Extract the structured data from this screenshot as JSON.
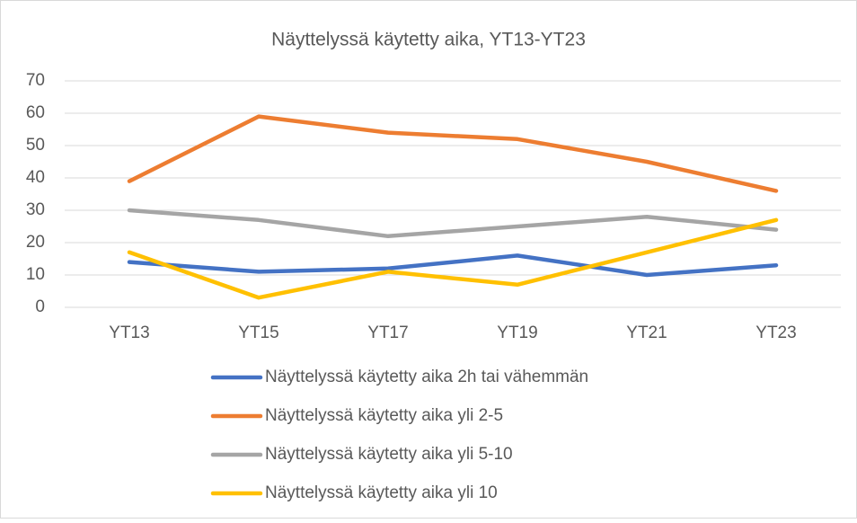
{
  "chart_data": {
    "type": "line",
    "title": "Näyttelyssä käytetty aika, YT13-YT23",
    "categories": [
      "YT13",
      "YT15",
      "YT17",
      "YT19",
      "YT21",
      "YT23"
    ],
    "series": [
      {
        "name": "Näyttelyssä käytetty aika 2h tai vähemmän",
        "color": "#4472c4",
        "values": [
          14,
          11,
          12,
          16,
          10,
          13
        ]
      },
      {
        "name": "Näyttelyssä käytetty aika yli 2-5",
        "color": "#ed7d31",
        "values": [
          39,
          59,
          54,
          52,
          45,
          36
        ]
      },
      {
        "name": "Näyttelyssä käytetty aika yli 5-10",
        "color": "#a5a5a5",
        "values": [
          30,
          27,
          22,
          25,
          28,
          24
        ]
      },
      {
        "name": "Näyttelyssä käytetty aika yli 10",
        "color": "#ffc000",
        "values": [
          17,
          3,
          11,
          7,
          17,
          27
        ]
      }
    ],
    "ylim": [
      0,
      70
    ],
    "yticks": [
      0,
      10,
      20,
      30,
      40,
      50,
      60,
      70
    ],
    "grid": true,
    "legend": "bottom"
  }
}
